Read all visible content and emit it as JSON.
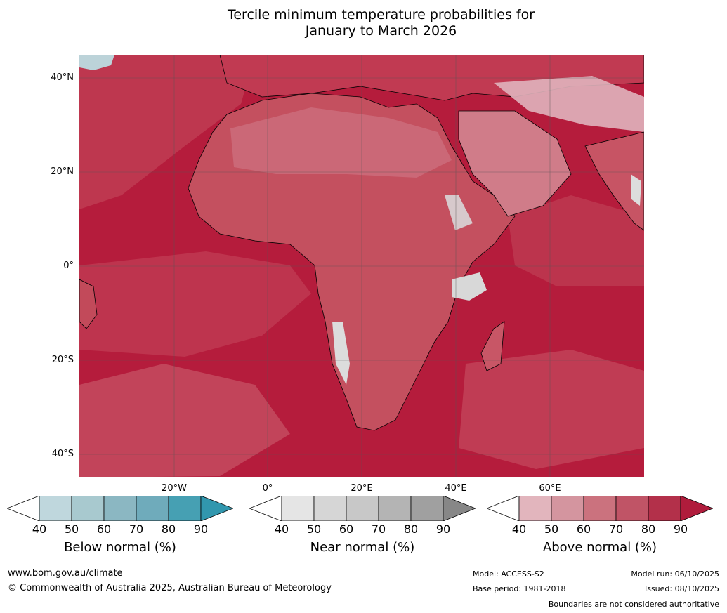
{
  "title": {
    "line1": "Tercile minimum temperature probabilities for",
    "line2": "January to March 2026"
  },
  "map": {
    "region": "Africa",
    "lat_labels": [
      "40°N",
      "20°N",
      "0°",
      "20°S",
      "40°S"
    ],
    "lon_labels": [
      "20°W",
      "0°",
      "20°E",
      "40°E",
      "60°E"
    ]
  },
  "colorbars": [
    {
      "title": "Below normal (%)",
      "ticks": [
        "40",
        "50",
        "60",
        "70",
        "80",
        "90"
      ],
      "colors": [
        "#ffffff",
        "#bfd7dd",
        "#a8c9cf",
        "#8bb7c2",
        "#6fabbb",
        "#46a0b3",
        "#3197ae"
      ]
    },
    {
      "title": "Near normal (%)",
      "ticks": [
        "40",
        "50",
        "60",
        "70",
        "80",
        "90"
      ],
      "colors": [
        "#ffffff",
        "#e5e5e5",
        "#d6d6d6",
        "#c8c8c8",
        "#b4b4b4",
        "#a0a0a0",
        "#878787"
      ]
    },
    {
      "title": "Above normal (%)",
      "ticks": [
        "40",
        "50",
        "60",
        "70",
        "80",
        "90"
      ],
      "colors": [
        "#ffffff",
        "#e2b5bd",
        "#d4959f",
        "#cb727e",
        "#c05466",
        "#b3304a",
        "#b01c3c"
      ]
    }
  ],
  "footer": {
    "website": "www.bom.gov.au/climate",
    "copyright": "© Commonwealth of Australia 2025, Australian Bureau of Meteorology",
    "model": "Model: ACCESS-S2",
    "base_period": "Base period: 1981-2018",
    "model_run": "Model run: 06/10/2025",
    "issued": "Issued: 08/10/2025",
    "disclaimer": "Boundaries are not considered authoritative"
  }
}
